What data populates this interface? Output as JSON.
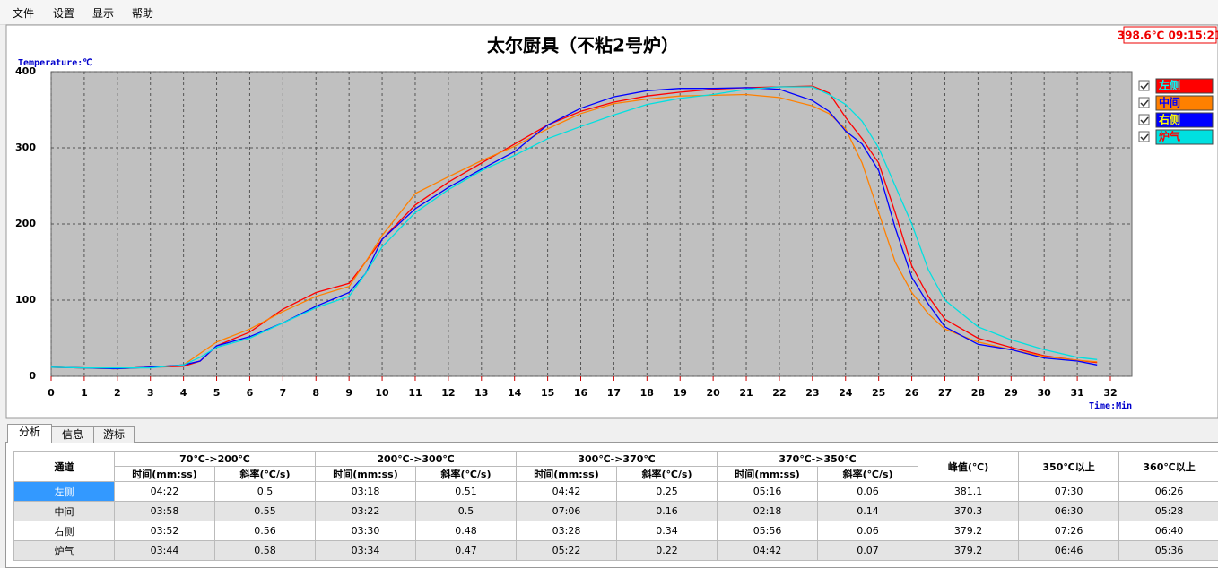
{
  "menu": [
    "文件",
    "设置",
    "显示",
    "帮助"
  ],
  "status": "398.6℃ 09:15:21",
  "chart_data": {
    "type": "line",
    "title": "太尔厨具（不粘2号炉）",
    "y_label": "Temperature:℃",
    "x_label": "Time:Min",
    "x": [
      0,
      1,
      2,
      3,
      4,
      4.5,
      5,
      6,
      7,
      8,
      9,
      9.5,
      10,
      11,
      12,
      13,
      14,
      15,
      16,
      17,
      18,
      19,
      20,
      21,
      22,
      23,
      23.5,
      24,
      24.5,
      25,
      25.5,
      26,
      26.5,
      27,
      28,
      29,
      30,
      31,
      31.6
    ],
    "series": [
      {
        "name": "左侧",
        "color": "#ff0000",
        "legend_text_color": "#00ffff",
        "values": [
          12,
          11,
          10,
          12,
          13,
          20,
          40,
          58,
          88,
          110,
          122,
          150,
          180,
          225,
          255,
          280,
          305,
          330,
          348,
          360,
          368,
          373,
          377,
          379,
          380,
          381,
          372,
          340,
          312,
          280,
          215,
          145,
          105,
          75,
          50,
          38,
          27,
          21,
          18
        ]
      },
      {
        "name": "中间",
        "color": "#ff8000",
        "legend_text_color": "#0000ff",
        "values": [
          12,
          11,
          10,
          12,
          15,
          30,
          45,
          62,
          85,
          105,
          118,
          150,
          185,
          240,
          262,
          283,
          302,
          325,
          345,
          358,
          364,
          368,
          369,
          370,
          366,
          355,
          345,
          325,
          280,
          215,
          150,
          110,
          82,
          62,
          45,
          35,
          26,
          21,
          19
        ]
      },
      {
        "name": "右侧",
        "color": "#0000ff",
        "legend_text_color": "#ffff00",
        "values": [
          12,
          11,
          10,
          12,
          15,
          20,
          40,
          52,
          70,
          92,
          110,
          135,
          180,
          220,
          248,
          272,
          295,
          330,
          352,
          367,
          375,
          378,
          378,
          379,
          377,
          362,
          348,
          322,
          305,
          270,
          195,
          130,
          95,
          65,
          42,
          35,
          24,
          20,
          15
        ]
      },
      {
        "name": "炉气",
        "color": "#00e0e0",
        "legend_text_color": "#ff0000",
        "values": [
          12,
          11,
          11,
          11,
          15,
          25,
          38,
          50,
          70,
          90,
          105,
          135,
          170,
          215,
          245,
          270,
          290,
          312,
          328,
          343,
          357,
          365,
          370,
          377,
          380,
          380,
          370,
          357,
          335,
          300,
          250,
          200,
          140,
          100,
          65,
          48,
          35,
          25,
          22
        ]
      }
    ],
    "xlim": [
      0,
      32.65
    ],
    "ylim": [
      0,
      400
    ],
    "xticks": [
      0,
      1,
      2,
      3,
      4,
      5,
      6,
      7,
      8,
      9,
      10,
      11,
      12,
      13,
      14,
      15,
      16,
      17,
      18,
      19,
      20,
      21,
      22,
      23,
      24,
      25,
      26,
      27,
      28,
      29,
      30,
      31,
      32
    ],
    "yticks": [
      0,
      100,
      200,
      300,
      400
    ],
    "grid": true
  },
  "tabs": [
    "分析",
    "信息",
    "游标"
  ],
  "table": {
    "channel_header": "通道",
    "group_headers": [
      "70℃->200℃",
      "200℃->300℃",
      "300℃->370℃",
      "370℃->350℃"
    ],
    "sub_headers": [
      "时间(mm:ss)",
      "斜率(℃/s)"
    ],
    "extra_headers": [
      "峰值(℃)",
      "350℃以上",
      "360℃以上"
    ],
    "rows": [
      [
        "左侧",
        "04:22",
        "0.5",
        "03:18",
        "0.51",
        "04:42",
        "0.25",
        "05:16",
        "0.06",
        "381.1",
        "07:30",
        "06:26"
      ],
      [
        "中间",
        "03:58",
        "0.55",
        "03:22",
        "0.5",
        "07:06",
        "0.16",
        "02:18",
        "0.14",
        "370.3",
        "06:30",
        "05:28"
      ],
      [
        "右侧",
        "03:52",
        "0.56",
        "03:30",
        "0.48",
        "03:28",
        "0.34",
        "05:56",
        "0.06",
        "379.2",
        "07:26",
        "06:40"
      ],
      [
        "炉气",
        "03:44",
        "0.58",
        "03:34",
        "0.47",
        "05:22",
        "0.22",
        "04:42",
        "0.07",
        "379.2",
        "06:46",
        "05:36"
      ]
    ]
  }
}
